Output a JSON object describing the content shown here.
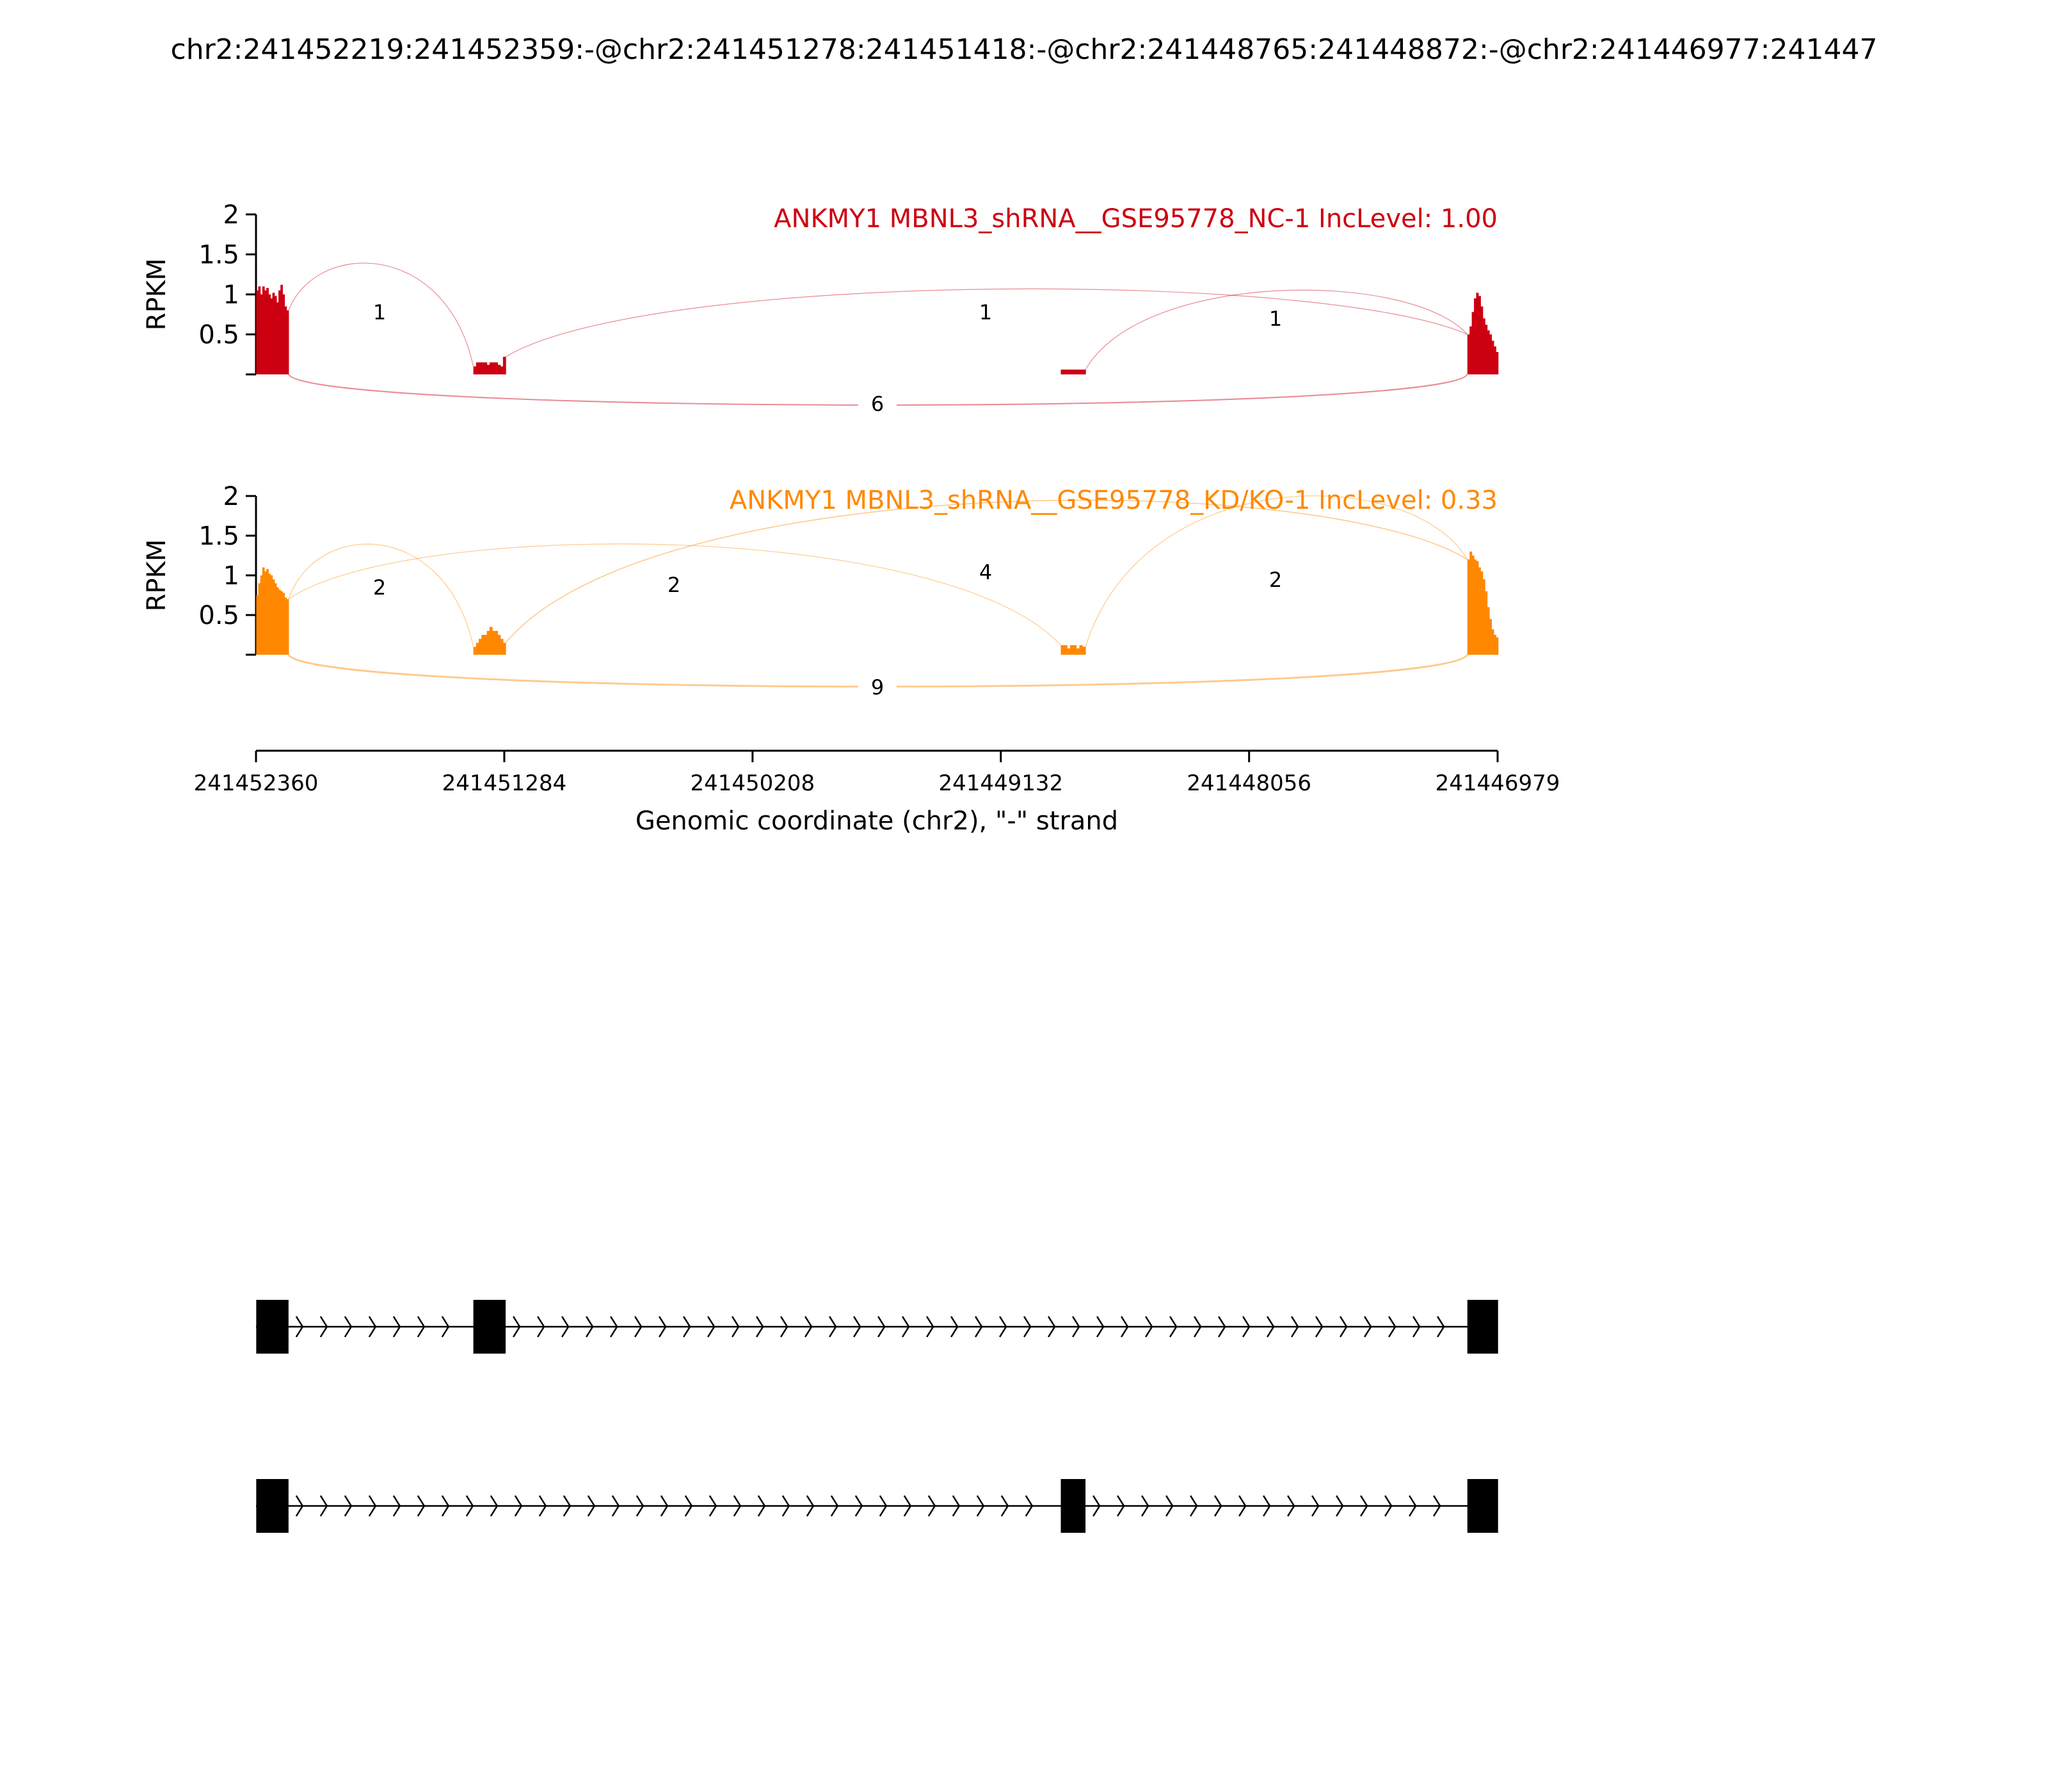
{
  "page_title": "chr2:241452219:241452359:-@chr2:241451278:241451418:-@chr2:241448765:241448872:-@chr2:241446977:241447",
  "chart_data": {
    "type": "sashimi",
    "chromosome": "chr2",
    "strand": "-",
    "xlim": [
      241452360,
      241446979
    ],
    "xticks": [
      241452360,
      241451284,
      241450208,
      241449132,
      241448056,
      241446979
    ],
    "xtick_labels": [
      "241452360",
      "241451284",
      "241450208",
      "241449132",
      "241448056",
      "241446979"
    ],
    "xlabel": "Genomic coordinate (chr2), \"-\" strand",
    "exons": [
      {
        "start": 241452359,
        "end": 241452219
      },
      {
        "start": 241451418,
        "end": 241451278
      },
      {
        "start": 241448872,
        "end": 241448765
      },
      {
        "start": 241447110,
        "end": 241446977
      }
    ],
    "tracks": [
      {
        "title": "ANKMY1 MBNL3_shRNA__GSE95778_NC-1 IncLevel: 1.00",
        "color": "#cc0011",
        "ylabel": "RPKM",
        "ylim": [
          0,
          2
        ],
        "yticks": [
          0.5,
          1,
          1.5,
          2
        ],
        "ytick_labels": [
          "0.5",
          "1",
          "1.5",
          "2"
        ],
        "coverage": [
          {
            "exon": 0,
            "values": [
              1.05,
              1.1,
              1.0,
              1.1,
              1.05,
              1.08,
              1.0,
              0.95,
              1.02,
              0.98,
              0.9,
              1.05,
              1.12,
              1.0,
              0.85,
              0.8
            ]
          },
          {
            "exon": 1,
            "values": [
              0.1,
              0.15,
              0.15,
              0.15,
              0.15,
              0.12,
              0.15,
              0.15,
              0.15,
              0.12,
              0.1,
              0.22
            ]
          },
          {
            "exon": 2,
            "values": [
              0.06,
              0.06,
              0.06,
              0.06,
              0.06,
              0.06,
              0.06,
              0.06
            ]
          },
          {
            "exon": 3,
            "values": [
              0.5,
              0.6,
              0.78,
              0.95,
              1.02,
              0.98,
              0.85,
              0.7,
              0.62,
              0.55,
              0.5,
              0.42,
              0.35,
              0.28
            ]
          }
        ],
        "junctions": [
          {
            "from": 0,
            "to": 1,
            "count": 1,
            "side": "above"
          },
          {
            "from": 1,
            "to": 3,
            "count": 1,
            "side": "above"
          },
          {
            "from": 2,
            "to": 3,
            "count": 1,
            "side": "above"
          },
          {
            "from": 0,
            "to": 3,
            "count": 6,
            "side": "below"
          }
        ],
        "junction_labels": [
          "1",
          "1",
          "1",
          "6"
        ]
      },
      {
        "title": "ANKMY1 MBNL3_shRNA__GSE95778_KD/KO-1 IncLevel: 0.33",
        "color": "#ff8800",
        "ylabel": "RPKM",
        "ylim": [
          0,
          2
        ],
        "yticks": [
          0.5,
          1,
          1.5,
          2
        ],
        "ytick_labels": [
          "0.5",
          "1",
          "1.5",
          "2"
        ],
        "coverage": [
          {
            "exon": 0,
            "values": [
              0.75,
              0.9,
              1.0,
              1.1,
              1.05,
              1.08,
              1.02,
              1.0,
              0.95,
              0.9,
              0.85,
              0.82,
              0.8,
              0.78,
              0.72,
              0.7
            ]
          },
          {
            "exon": 1,
            "values": [
              0.1,
              0.15,
              0.2,
              0.25,
              0.25,
              0.3,
              0.35,
              0.3,
              0.3,
              0.25,
              0.2,
              0.15
            ]
          },
          {
            "exon": 2,
            "values": [
              0.12,
              0.12,
              0.08,
              0.12,
              0.12,
              0.08,
              0.12,
              0.1
            ]
          },
          {
            "exon": 3,
            "values": [
              1.2,
              1.3,
              1.25,
              1.2,
              1.18,
              1.1,
              1.05,
              0.95,
              0.8,
              0.6,
              0.45,
              0.32,
              0.25,
              0.22
            ]
          }
        ],
        "junctions": [
          {
            "from": 0,
            "to": 1,
            "count": 2,
            "side": "above"
          },
          {
            "from": 0,
            "to": 2,
            "count": 2,
            "side": "above"
          },
          {
            "from": 1,
            "to": 3,
            "count": 4,
            "side": "above"
          },
          {
            "from": 2,
            "to": 3,
            "count": 2,
            "side": "above"
          },
          {
            "from": 0,
            "to": 3,
            "count": 9,
            "side": "below"
          }
        ],
        "junction_labels": [
          "2",
          "2",
          "4",
          "2",
          "9"
        ]
      }
    ],
    "isoforms": [
      {
        "exons": [
          0,
          1,
          3
        ]
      },
      {
        "exons": [
          0,
          2,
          3
        ]
      }
    ],
    "grid": false
  }
}
